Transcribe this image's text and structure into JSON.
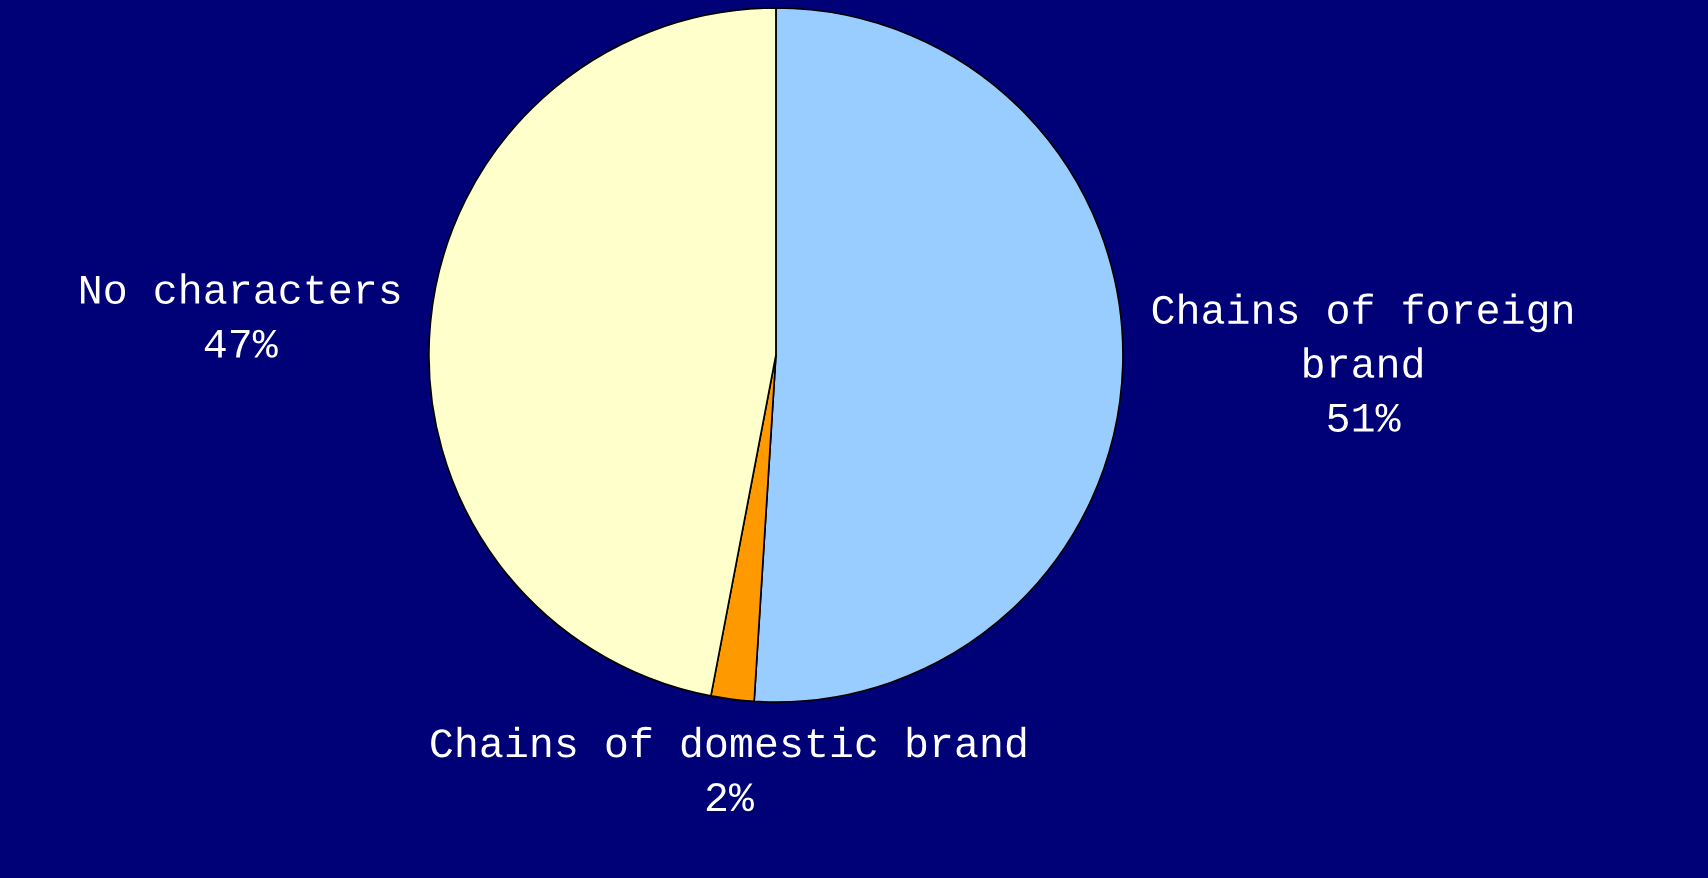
{
  "chart_data": {
    "type": "pie",
    "categories": [
      "Chains of foreign brand",
      "Chains of domestic brand",
      "No characters"
    ],
    "values": [
      51,
      2,
      47
    ],
    "value_labels": [
      "51%",
      "2%",
      "47%"
    ],
    "colors": [
      "#99ccff",
      "#ff9900",
      "#ffffcc"
    ]
  }
}
